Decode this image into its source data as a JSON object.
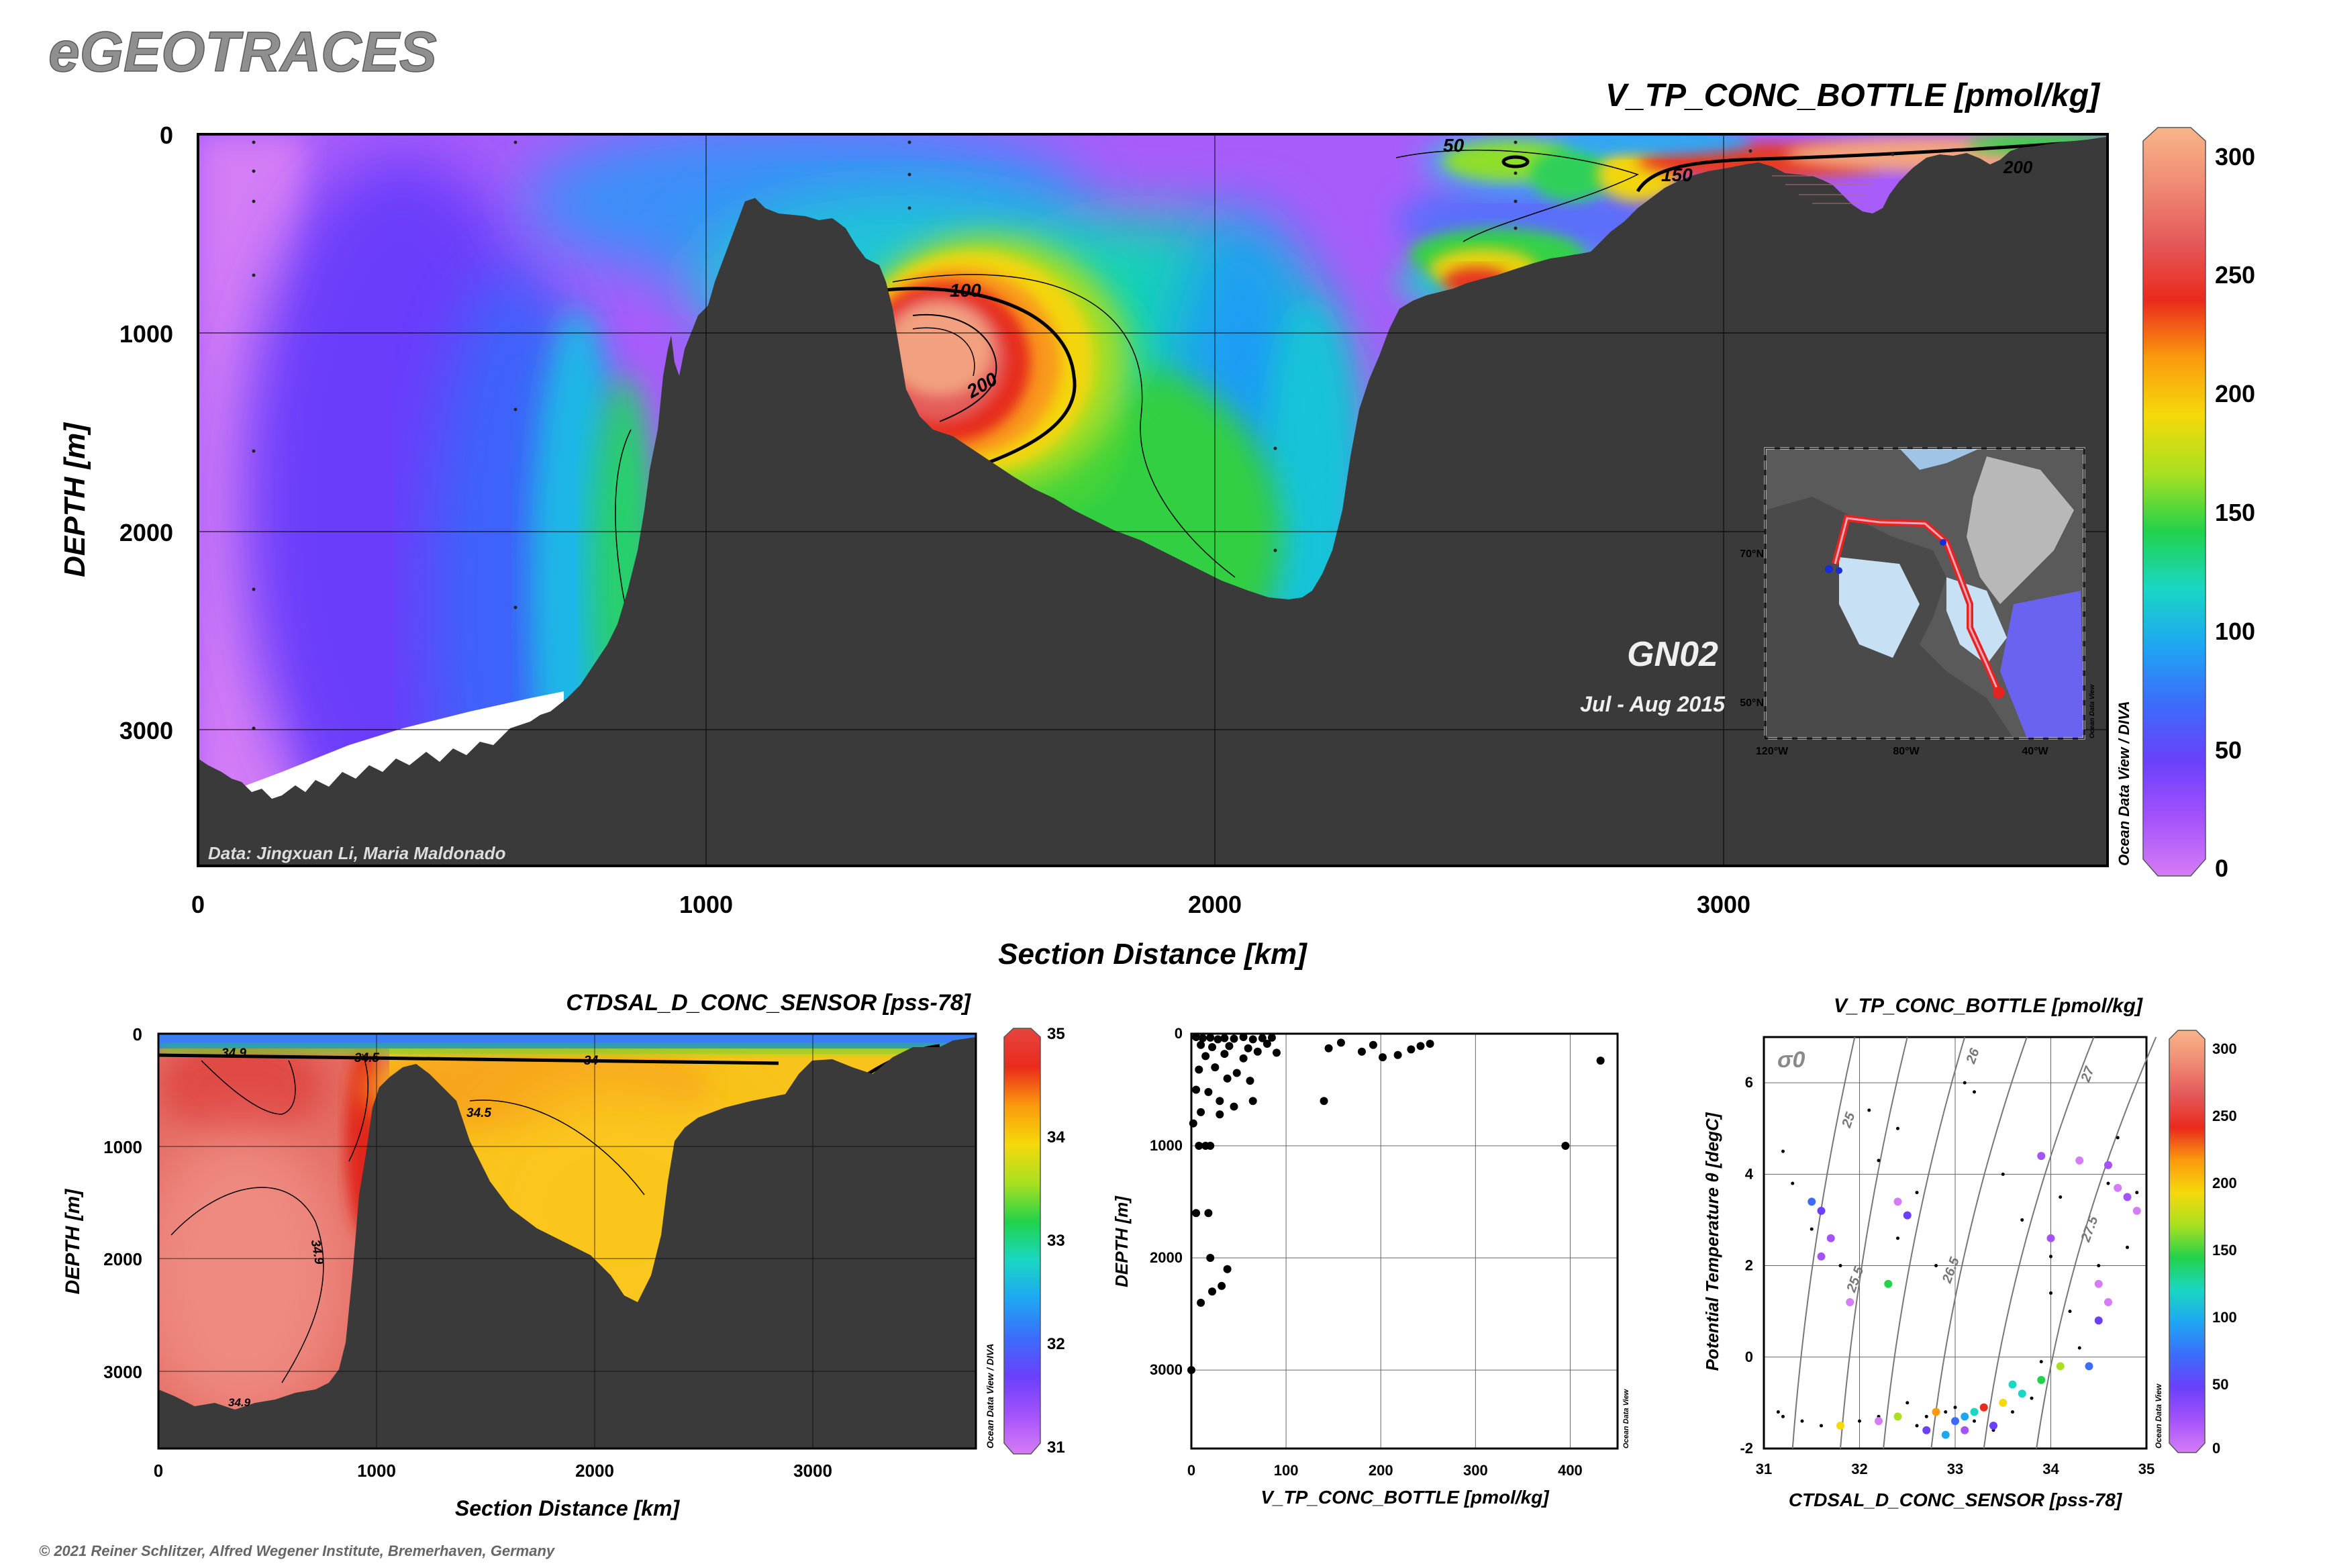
{
  "brand": "eGEOTRACES",
  "copyright": "© 2021 Reiner Schlitzer, Alfred Wegener Institute, Bremerhaven, Germany",
  "colors": {
    "terrain": "#3a3a3a",
    "scale": [
      "#d67cf6",
      "#a453fb",
      "#6a40fb",
      "#3b6dfa",
      "#1fa6f3",
      "#19d7c3",
      "#22d24a",
      "#a9e020",
      "#f5d90a",
      "#fb9a0e",
      "#ea2a1c",
      "#e4595a",
      "#ef8a73",
      "#f9b58a"
    ]
  },
  "main": {
    "title": "V_TP_CONC_BOTTLE [pmol/kg]",
    "xlabel": "Section Distance [km]",
    "ylabel": "DEPTH [m]",
    "credit": "Data: Jingxuan Li, Maria Maldonado",
    "cruise": "GN02",
    "period": "Jul - Aug 2015",
    "odv_label": "Ocean Data View / DIVA",
    "xticks": [
      "0",
      "1000",
      "2000",
      "3000"
    ],
    "yticks": [
      "0",
      "1000",
      "2000",
      "3000"
    ],
    "contour_labels": [
      "50",
      "100",
      "200",
      "150",
      "200"
    ],
    "colorbar_ticks": [
      "0",
      "50",
      "100",
      "150",
      "200",
      "250",
      "300"
    ],
    "inset": {
      "lat_labels": [
        "70°N",
        "50°N"
      ],
      "lon_labels": [
        "120°W",
        "80°W",
        "40°W"
      ],
      "odv_label": "Ocean Data View"
    }
  },
  "panel_sal": {
    "title": "CTDSAL_D_CONC_SENSOR [pss-78]",
    "xlabel": "Section Distance [km]",
    "ylabel": "DEPTH [m]",
    "xticks": [
      "0",
      "1000",
      "2000",
      "3000"
    ],
    "yticks": [
      "0",
      "1000",
      "2000",
      "3000"
    ],
    "contour_labels": [
      "34.9",
      "34.5",
      "34",
      "34.5",
      "34.9",
      "34.9"
    ],
    "colorbar_ticks": [
      "31",
      "32",
      "33",
      "34",
      "35"
    ],
    "odv_label": "Ocean Data View / DIVA"
  },
  "panel_scatter": {
    "xlabel": "V_TP_CONC_BOTTLE [pmol/kg]",
    "ylabel": "DEPTH [m]",
    "xticks": [
      "0",
      "100",
      "200",
      "300",
      "400"
    ],
    "yticks": [
      "0",
      "1000",
      "2000",
      "3000"
    ],
    "odv_label": "Ocean Data View"
  },
  "panel_ts": {
    "title": "V_TP_CONC_BOTTLE [pmol/kg]",
    "xlabel": "CTDSAL_D_CONC_SENSOR [pss-78]",
    "ylabel": "Potential Temperature θ [degC]",
    "sigma_label": "σ0",
    "xticks": [
      "31",
      "32",
      "33",
      "34",
      "35"
    ],
    "yticks": [
      "-2",
      "0",
      "2",
      "4",
      "6"
    ],
    "isopycnal_labels": [
      "25",
      "26",
      "27",
      "25.5",
      "26.5",
      "27.5"
    ],
    "colorbar_ticks": [
      "0",
      "50",
      "100",
      "150",
      "200",
      "250",
      "300"
    ],
    "odv_label": "Ocean Data View"
  },
  "chart_data": [
    {
      "type": "heatmap",
      "title": "V_TP_CONC_BOTTLE [pmol/kg]",
      "xlabel": "Section Distance [km]",
      "ylabel": "DEPTH [m]",
      "xlim": [
        0,
        3750
      ],
      "ylim": [
        3700,
        0
      ],
      "colorbar_range": [
        0,
        310
      ],
      "colorbar_ticks": [
        0,
        50,
        100,
        150,
        200,
        250,
        300
      ],
      "contour_levels": [
        50,
        100,
        150,
        200
      ],
      "features": [
        {
          "label": "max near 1450 km, 1000 m depth",
          "value": 250
        },
        {
          "label": "shelf near 3300 km, 150 m depth",
          "value": 250
        }
      ]
    },
    {
      "type": "heatmap",
      "title": "CTDSAL_D_CONC_SENSOR [pss-78]",
      "xlabel": "Section Distance [km]",
      "ylabel": "DEPTH [m]",
      "xlim": [
        0,
        3750
      ],
      "ylim": [
        3700,
        0
      ],
      "colorbar_range": [
        31,
        35
      ],
      "colorbar_ticks": [
        31,
        32,
        33,
        34,
        35
      ],
      "contour_levels": [
        34,
        34.5,
        34.9
      ]
    },
    {
      "type": "scatter",
      "xlabel": "V_TP_CONC_BOTTLE [pmol/kg]",
      "ylabel": "DEPTH [m]",
      "xlim": [
        0,
        450
      ],
      "ylim": [
        3700,
        0
      ],
      "points": [
        [
          5,
          30
        ],
        [
          12,
          40
        ],
        [
          20,
          35
        ],
        [
          28,
          50
        ],
        [
          35,
          40
        ],
        [
          45,
          45
        ],
        [
          55,
          30
        ],
        [
          65,
          50
        ],
        [
          75,
          40
        ],
        [
          85,
          35
        ],
        [
          10,
          100
        ],
        [
          22,
          120
        ],
        [
          40,
          110
        ],
        [
          60,
          130
        ],
        [
          80,
          90
        ],
        [
          15,
          200
        ],
        [
          35,
          180
        ],
        [
          55,
          220
        ],
        [
          70,
          160
        ],
        [
          90,
          170
        ],
        [
          25,
          300
        ],
        [
          8,
          320
        ],
        [
          48,
          350
        ],
        [
          38,
          400
        ],
        [
          62,
          420
        ],
        [
          5,
          500
        ],
        [
          18,
          520
        ],
        [
          30,
          600
        ],
        [
          45,
          650
        ],
        [
          10,
          700
        ],
        [
          65,
          600
        ],
        [
          30,
          720
        ],
        [
          2,
          800
        ],
        [
          8,
          1000
        ],
        [
          15,
          1000
        ],
        [
          20,
          1000
        ],
        [
          140,
          600
        ],
        [
          145,
          130
        ],
        [
          158,
          80
        ],
        [
          180,
          160
        ],
        [
          192,
          100
        ],
        [
          202,
          210
        ],
        [
          218,
          190
        ],
        [
          232,
          140
        ],
        [
          242,
          110
        ],
        [
          252,
          90
        ],
        [
          395,
          1000
        ],
        [
          432,
          240
        ],
        [
          5,
          1600
        ],
        [
          18,
          1600
        ],
        [
          20,
          2000
        ],
        [
          38,
          2100
        ],
        [
          22,
          2300
        ],
        [
          32,
          2250
        ],
        [
          10,
          2400
        ],
        [
          0,
          3000
        ]
      ]
    },
    {
      "type": "scatter",
      "title": "V_TP_CONC_BOTTLE [pmol/kg]",
      "xlabel": "CTDSAL_D_CONC_SENSOR [pss-78]",
      "ylabel": "Potential Temperature θ [degC]",
      "xlim": [
        31,
        35
      ],
      "ylim": [
        -2,
        7
      ],
      "colorbar_range": [
        0,
        310
      ],
      "isopycnals": [
        25,
        25.5,
        26,
        26.5,
        27,
        27.5
      ],
      "points": [
        [
          31.5,
          3.4,
          70
        ],
        [
          31.6,
          3.2,
          40
        ],
        [
          31.7,
          2.6,
          30
        ],
        [
          31.6,
          2.2,
          20
        ],
        [
          31.9,
          1.2,
          10
        ],
        [
          32.3,
          1.6,
          150
        ],
        [
          32.5,
          3.1,
          40
        ],
        [
          32.4,
          3.4,
          10
        ],
        [
          33.9,
          4.4,
          20
        ],
        [
          34.3,
          4.3,
          10
        ],
        [
          34.6,
          4.2,
          15
        ],
        [
          34.7,
          3.7,
          10
        ],
        [
          34.8,
          3.5,
          20
        ],
        [
          34.9,
          3.2,
          0
        ],
        [
          34.5,
          1.6,
          5
        ],
        [
          34.6,
          1.2,
          10
        ],
        [
          34.5,
          0.8,
          40
        ],
        [
          34.4,
          -0.2,
          60
        ],
        [
          33.2,
          -1.2,
          130
        ],
        [
          33.5,
          -1.0,
          200
        ],
        [
          33.0,
          -1.4,
          80
        ],
        [
          32.7,
          -1.6,
          40
        ],
        [
          32.9,
          -1.7,
          90
        ],
        [
          33.1,
          -1.3,
          100
        ],
        [
          32.4,
          -1.3,
          160
        ],
        [
          32.2,
          -1.4,
          10
        ],
        [
          31.8,
          -1.5,
          180
        ],
        [
          33.7,
          -0.8,
          130
        ],
        [
          33.6,
          -0.6,
          110
        ],
        [
          34.1,
          -0.2,
          160
        ],
        [
          33.9,
          -0.5,
          150
        ],
        [
          32.8,
          -1.2,
          220
        ],
        [
          33.3,
          -1.1,
          250
        ],
        [
          33.4,
          -1.5,
          40
        ],
        [
          33.1,
          -1.6,
          30
        ],
        [
          34.0,
          2.6,
          20
        ]
      ]
    }
  ]
}
